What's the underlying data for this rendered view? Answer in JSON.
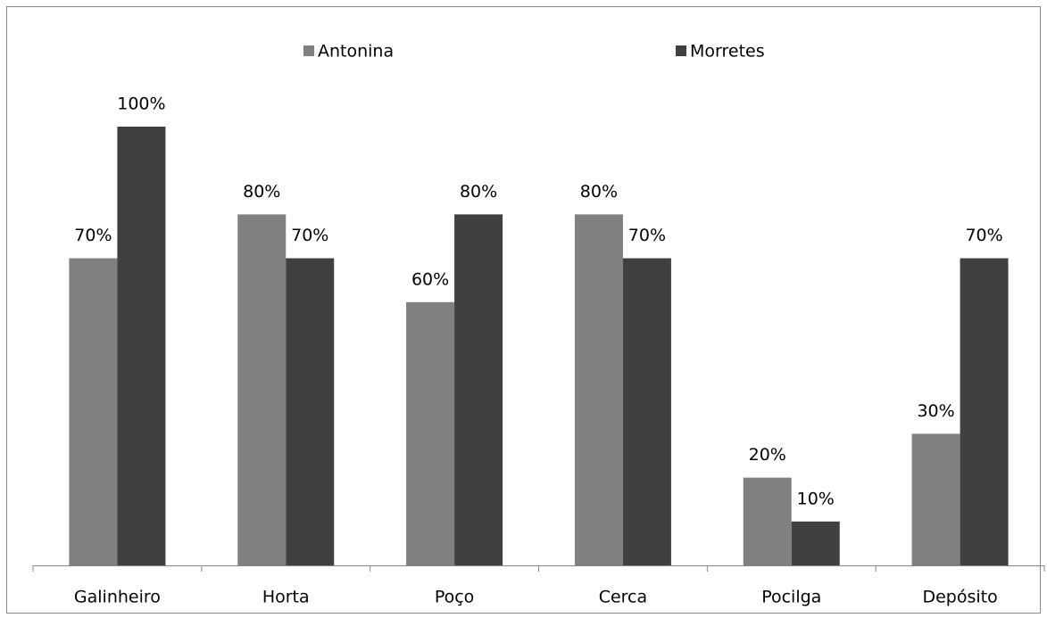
{
  "chart_data": {
    "type": "bar",
    "categories": [
      "Galinheiro",
      "Horta",
      "Poço",
      "Cerca",
      "Pocilga",
      "Depósito"
    ],
    "series": [
      {
        "name": "Antonina",
        "color": "#808080",
        "values": [
          70,
          80,
          60,
          80,
          20,
          30
        ],
        "value_labels": [
          "70%",
          "80%",
          "60%",
          "80%",
          "20%",
          "30%"
        ]
      },
      {
        "name": "Morretes",
        "color": "#404040",
        "values": [
          100,
          70,
          80,
          70,
          10,
          70
        ],
        "value_labels": [
          "100%",
          "70%",
          "80%",
          "70%",
          "10%",
          "70%"
        ]
      }
    ],
    "ylim": [
      0,
      100
    ],
    "legend": "top"
  }
}
